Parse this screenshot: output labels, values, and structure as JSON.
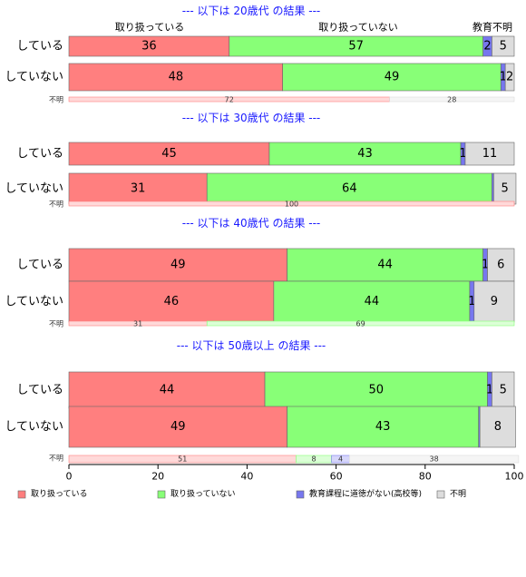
{
  "chart_data": {
    "type": "bar",
    "orientation": "horizontal-stacked",
    "xlim": [
      0,
      100
    ],
    "x_ticks": [
      0,
      20,
      40,
      60,
      80,
      100
    ],
    "series": [
      {
        "name": "取り扱っている",
        "color": "#ff7f7f"
      },
      {
        "name": "取り扱っていない",
        "color": "#88ff77"
      },
      {
        "name": "教育課程に道徳がない(高校等)",
        "color": "#7777ee"
      },
      {
        "name": "不明",
        "color": "#dddddd"
      }
    ],
    "column_headers": [
      "取り扱っている",
      "取り扱っていない",
      "教育",
      "不明"
    ],
    "groups": [
      {
        "title": "--- 以下は 20歳代 の結果 ---",
        "rows": [
          {
            "label": "している",
            "values": [
              36,
              57,
              2,
              5
            ],
            "labels": [
              "36",
              "57",
              "2",
              "5"
            ]
          },
          {
            "label": "していない",
            "values": [
              48,
              49,
              1,
              2
            ],
            "labels": [
              "48",
              "49",
              "1",
              "2"
            ]
          }
        ],
        "unknown": {
          "label": "不明",
          "values": [
            72,
            0,
            0,
            28
          ],
          "labels": [
            "72",
            "",
            "",
            "28"
          ]
        }
      },
      {
        "title": "--- 以下は 30歳代 の結果 ---",
        "rows": [
          {
            "label": "している",
            "values": [
              45,
              43,
              1,
              11
            ],
            "labels": [
              "45",
              "43",
              "1",
              "11"
            ]
          },
          {
            "label": "していない",
            "values": [
              31,
              64,
              0.4,
              5
            ],
            "labels": [
              "31",
              "64",
              "",
              "5"
            ]
          }
        ],
        "unknown": {
          "label": "不明",
          "values": [
            100,
            0,
            0,
            0
          ],
          "labels": [
            "100",
            "",
            "",
            ""
          ]
        }
      },
      {
        "title": "--- 以下は 40歳代 の結果 ---",
        "rows": [
          {
            "label": "している",
            "values": [
              49,
              44,
              1,
              6
            ],
            "labels": [
              "49",
              "44",
              "1",
              "6"
            ]
          },
          {
            "label": "していない",
            "values": [
              46,
              44,
              1,
              9
            ],
            "labels": [
              "46",
              "44",
              "1",
              "9"
            ]
          }
        ],
        "unknown": {
          "label": "不明",
          "values": [
            31,
            69,
            0,
            0
          ],
          "labels": [
            "31",
            "69",
            "",
            ""
          ]
        }
      },
      {
        "title": "--- 以下は 50歳以上 の結果 ---",
        "rows": [
          {
            "label": "している",
            "values": [
              44,
              50,
              1,
              5
            ],
            "labels": [
              "44",
              "50",
              "1",
              "5"
            ]
          },
          {
            "label": "していない",
            "values": [
              49,
              43,
              0.3,
              8
            ],
            "labels": [
              "49",
              "43",
              "",
              "8"
            ]
          }
        ],
        "unknown": {
          "label": "不明",
          "values": [
            51,
            8,
            4,
            38
          ],
          "labels": [
            "51",
            "8",
            "4",
            "38"
          ]
        }
      }
    ]
  }
}
